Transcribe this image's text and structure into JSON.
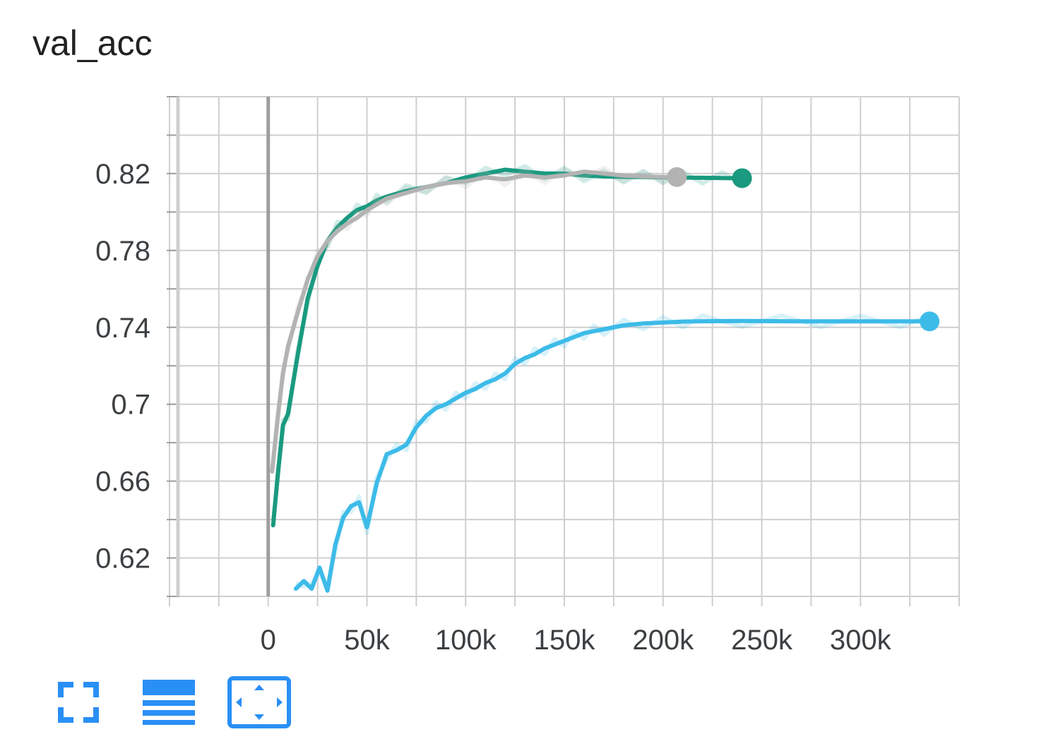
{
  "title": "val_acc",
  "colors": {
    "grid": "#cfcfcf",
    "axis": "#9e9e9e",
    "teal": "#1a9a80",
    "gray": "#b3b3b3",
    "blue": "#3dbbe8",
    "icon": "#2a8ff5"
  },
  "toolbar": {
    "buttons": [
      {
        "name": "fullscreen-icon"
      },
      {
        "name": "data-list-icon"
      },
      {
        "name": "fit-domain-icon"
      }
    ]
  },
  "chart_data": {
    "type": "line",
    "title": "val_acc",
    "xlabel": "",
    "ylabel": "",
    "xlim": [
      -50000,
      350000
    ],
    "ylim": [
      0.6,
      0.86
    ],
    "x_ticks": [
      0,
      50000,
      100000,
      150000,
      200000,
      250000,
      300000
    ],
    "x_tick_labels": [
      "0",
      "50k",
      "100k",
      "150k",
      "200k",
      "250k",
      "300k"
    ],
    "y_ticks": [
      0.62,
      0.66,
      0.7,
      0.74,
      0.78,
      0.82
    ],
    "y_tick_labels": [
      "0.62",
      "0.66",
      "0.7",
      "0.74",
      "0.78",
      "0.82"
    ],
    "grid": true,
    "legend": "none",
    "series": [
      {
        "color": "#1a9a80",
        "x": [
          2500,
          5000,
          7500,
          10000,
          15000,
          20000,
          25000,
          30000,
          35000,
          40000,
          45000,
          50000,
          55000,
          60000,
          70000,
          80000,
          90000,
          100000,
          110000,
          120000,
          130000,
          140000,
          150000,
          160000,
          170000,
          180000,
          190000,
          200000,
          210000,
          220000,
          230000,
          240000
        ],
        "y": [
          0.637,
          0.665,
          0.689,
          0.695,
          0.726,
          0.755,
          0.772,
          0.785,
          0.792,
          0.797,
          0.801,
          0.803,
          0.806,
          0.808,
          0.811,
          0.813,
          0.815,
          0.818,
          0.82,
          0.822,
          0.821,
          0.82,
          0.82,
          0.819,
          0.8185,
          0.8183,
          0.8182,
          0.818,
          0.8179,
          0.8178,
          0.8177,
          0.8176
        ]
      },
      {
        "color": "#b3b3b3",
        "x": [
          2000,
          5000,
          7500,
          10000,
          15000,
          20000,
          25000,
          30000,
          35000,
          40000,
          45000,
          50000,
          55000,
          60000,
          70000,
          80000,
          90000,
          100000,
          110000,
          120000,
          130000,
          140000,
          150000,
          160000,
          170000,
          180000,
          190000,
          200000,
          207000
        ],
        "y": [
          0.665,
          0.695,
          0.716,
          0.73,
          0.748,
          0.765,
          0.777,
          0.785,
          0.79,
          0.794,
          0.797,
          0.801,
          0.804,
          0.807,
          0.81,
          0.813,
          0.815,
          0.816,
          0.818,
          0.817,
          0.819,
          0.818,
          0.819,
          0.821,
          0.82,
          0.819,
          0.8185,
          0.8182,
          0.8182
        ]
      },
      {
        "color": "#3dbbe8",
        "x": [
          14000,
          18000,
          22000,
          26000,
          30000,
          34000,
          38000,
          42000,
          46000,
          50000,
          55000,
          60000,
          65000,
          70000,
          75000,
          80000,
          85000,
          90000,
          95000,
          100000,
          105000,
          110000,
          115000,
          120000,
          125000,
          130000,
          135000,
          140000,
          145000,
          150000,
          155000,
          160000,
          165000,
          170000,
          180000,
          190000,
          200000,
          210000,
          220000,
          240000,
          260000,
          280000,
          300000,
          320000,
          335000
        ],
        "y": [
          0.604,
          0.608,
          0.604,
          0.615,
          0.603,
          0.627,
          0.641,
          0.647,
          0.649,
          0.636,
          0.659,
          0.674,
          0.676,
          0.679,
          0.688,
          0.694,
          0.698,
          0.7,
          0.703,
          0.706,
          0.708,
          0.711,
          0.713,
          0.716,
          0.721,
          0.724,
          0.726,
          0.729,
          0.731,
          0.733,
          0.735,
          0.737,
          0.738,
          0.739,
          0.741,
          0.742,
          0.7425,
          0.743,
          0.7432,
          0.7433,
          0.7432,
          0.7431,
          0.7431,
          0.7431,
          0.7431
        ]
      }
    ]
  }
}
